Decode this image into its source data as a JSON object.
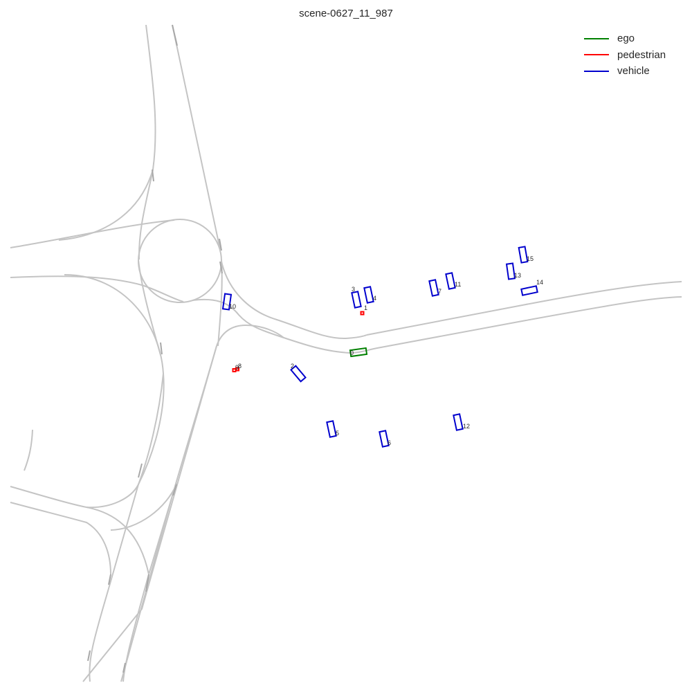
{
  "title": "scene-0627_11_987",
  "legend": [
    {
      "label": "ego",
      "color": "#008000"
    },
    {
      "label": "pedestrian",
      "color": "#ff0000"
    },
    {
      "label": "vehicle",
      "color": "#0000cd"
    }
  ],
  "agents": [
    {
      "id": "0",
      "type": "ego"
    },
    {
      "id": "1",
      "type": "pedestrian"
    },
    {
      "id": "2",
      "type": "vehicle"
    },
    {
      "id": "3",
      "type": "vehicle"
    },
    {
      "id": "4",
      "type": "vehicle"
    },
    {
      "id": "5",
      "type": "vehicle"
    },
    {
      "id": "6",
      "type": "vehicle"
    },
    {
      "id": "7",
      "type": "vehicle"
    },
    {
      "id": "8",
      "type": "pedestrian"
    },
    {
      "id": "9",
      "type": "pedestrian"
    },
    {
      "id": "10",
      "type": "vehicle"
    },
    {
      "id": "11",
      "type": "vehicle"
    },
    {
      "id": "12",
      "type": "vehicle"
    },
    {
      "id": "13",
      "type": "vehicle"
    },
    {
      "id": "14",
      "type": "vehicle"
    },
    {
      "id": "15",
      "type": "vehicle"
    }
  ]
}
